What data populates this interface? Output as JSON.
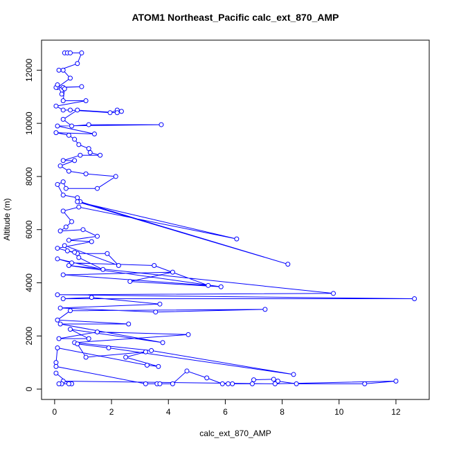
{
  "chart_data": {
    "type": "line",
    "title": "ATOM1 Northeast_Pacific calc_ext_870_AMP",
    "xlabel": "calc_ext_870_AMP",
    "ylabel": "Altitude (m)",
    "color": "#0000ff",
    "marker": "open-circle",
    "xlim": [
      -0.46,
      13.17
    ],
    "ylim": [
      -390,
      13130
    ],
    "xticks": [
      0,
      2,
      4,
      6,
      8,
      10,
      12
    ],
    "yticks": [
      0,
      2000,
      4000,
      6000,
      8000,
      10000,
      12000
    ],
    "x": [
      0.35,
      0.45,
      0.55,
      0.95,
      0.8,
      0.15,
      0.3,
      0.55,
      0.1,
      0.3,
      0.95,
      0.05,
      0.1,
      0.25,
      0.35,
      0.3,
      1.1,
      0.05,
      0.3,
      0.55,
      1.95,
      2.2,
      2.35,
      2.2,
      0.8,
      0.3,
      0.6,
      1.2,
      3.75,
      0.1,
      1.4,
      0.05,
      0.5,
      0.7,
      0.85,
      1.2,
      1.25,
      1.6,
      0.9,
      0.3,
      0.7,
      0.2,
      0.5,
      1.1,
      2.15,
      1.5,
      0.4,
      0.3,
      0.1,
      0.3,
      0.8,
      0.9,
      8.2,
      0.8,
      6.4,
      0.85,
      0.3,
      0.6,
      0.4,
      0.2,
      1.0,
      1.5,
      0.5,
      1.3,
      0.1,
      0.8,
      1.85,
      2.25,
      0.35,
      0.45,
      0.7,
      0.85,
      1.7,
      0.1,
      0.6,
      3.5,
      5.4,
      0.3,
      4.15,
      2.65,
      5.85,
      0.5,
      9.8,
      0.1,
      12.65,
      0.3,
      1.3,
      3.7,
      0.2,
      3.55,
      7.4,
      0.55,
      0.1,
      2.6,
      0.2,
      3.8,
      0.55,
      1.2,
      0.15,
      1.5,
      4.7,
      0.7,
      3.4,
      8.4,
      1.9,
      0.8,
      1.1,
      3.2,
      2.5,
      3.65,
      3.25,
      0.1,
      0.05,
      0.05,
      3.2,
      3.6,
      3.7,
      4.15,
      4.65,
      5.35,
      5.9,
      6.1,
      6.25,
      6.95,
      7.0,
      7.7,
      7.85,
      8.5,
      10.9,
      12.0,
      7.75,
      0.3,
      0.25,
      0.15,
      0.6,
      0.5,
      0.05
    ],
    "values": [
      12650,
      12650,
      12650,
      12650,
      12250,
      12000,
      12000,
      11700,
      11350,
      11350,
      11380,
      11350,
      11450,
      11100,
      11300,
      10850,
      10850,
      10650,
      10500,
      10500,
      10400,
      10500,
      10450,
      10400,
      10500,
      10150,
      9900,
      9950,
      9950,
      9900,
      9600,
      9650,
      9550,
      9400,
      9200,
      9050,
      8900,
      8800,
      8800,
      8600,
      8600,
      8400,
      8200,
      8100,
      8000,
      7550,
      7550,
      7800,
      7700,
      7300,
      7200,
      7050,
      4700,
      7050,
      5650,
      6850,
      6700,
      6300,
      6100,
      5950,
      6000,
      5750,
      5600,
      5550,
      5300,
      5100,
      5100,
      4650,
      5400,
      5200,
      5150,
      4950,
      4500,
      4900,
      4750,
      4650,
      3900,
      4300,
      4400,
      4050,
      3850,
      4650,
      3600,
      3550,
      3400,
      3400,
      3450,
      3200,
      3050,
      2900,
      3000,
      2950,
      2600,
      2450,
      2450,
      1750,
      2250,
      1900,
      1900,
      2150,
      2050,
      1750,
      1450,
      550,
      1550,
      1700,
      1200,
      1400,
      1200,
      850,
      900,
      1550,
      1000,
      850,
      200,
      200,
      200,
      200,
      680,
      420,
      200,
      200,
      200,
      200,
      350,
      370,
      300,
      200,
      200,
      300,
      200,
      300,
      200,
      200,
      200,
      200,
      600
    ]
  }
}
